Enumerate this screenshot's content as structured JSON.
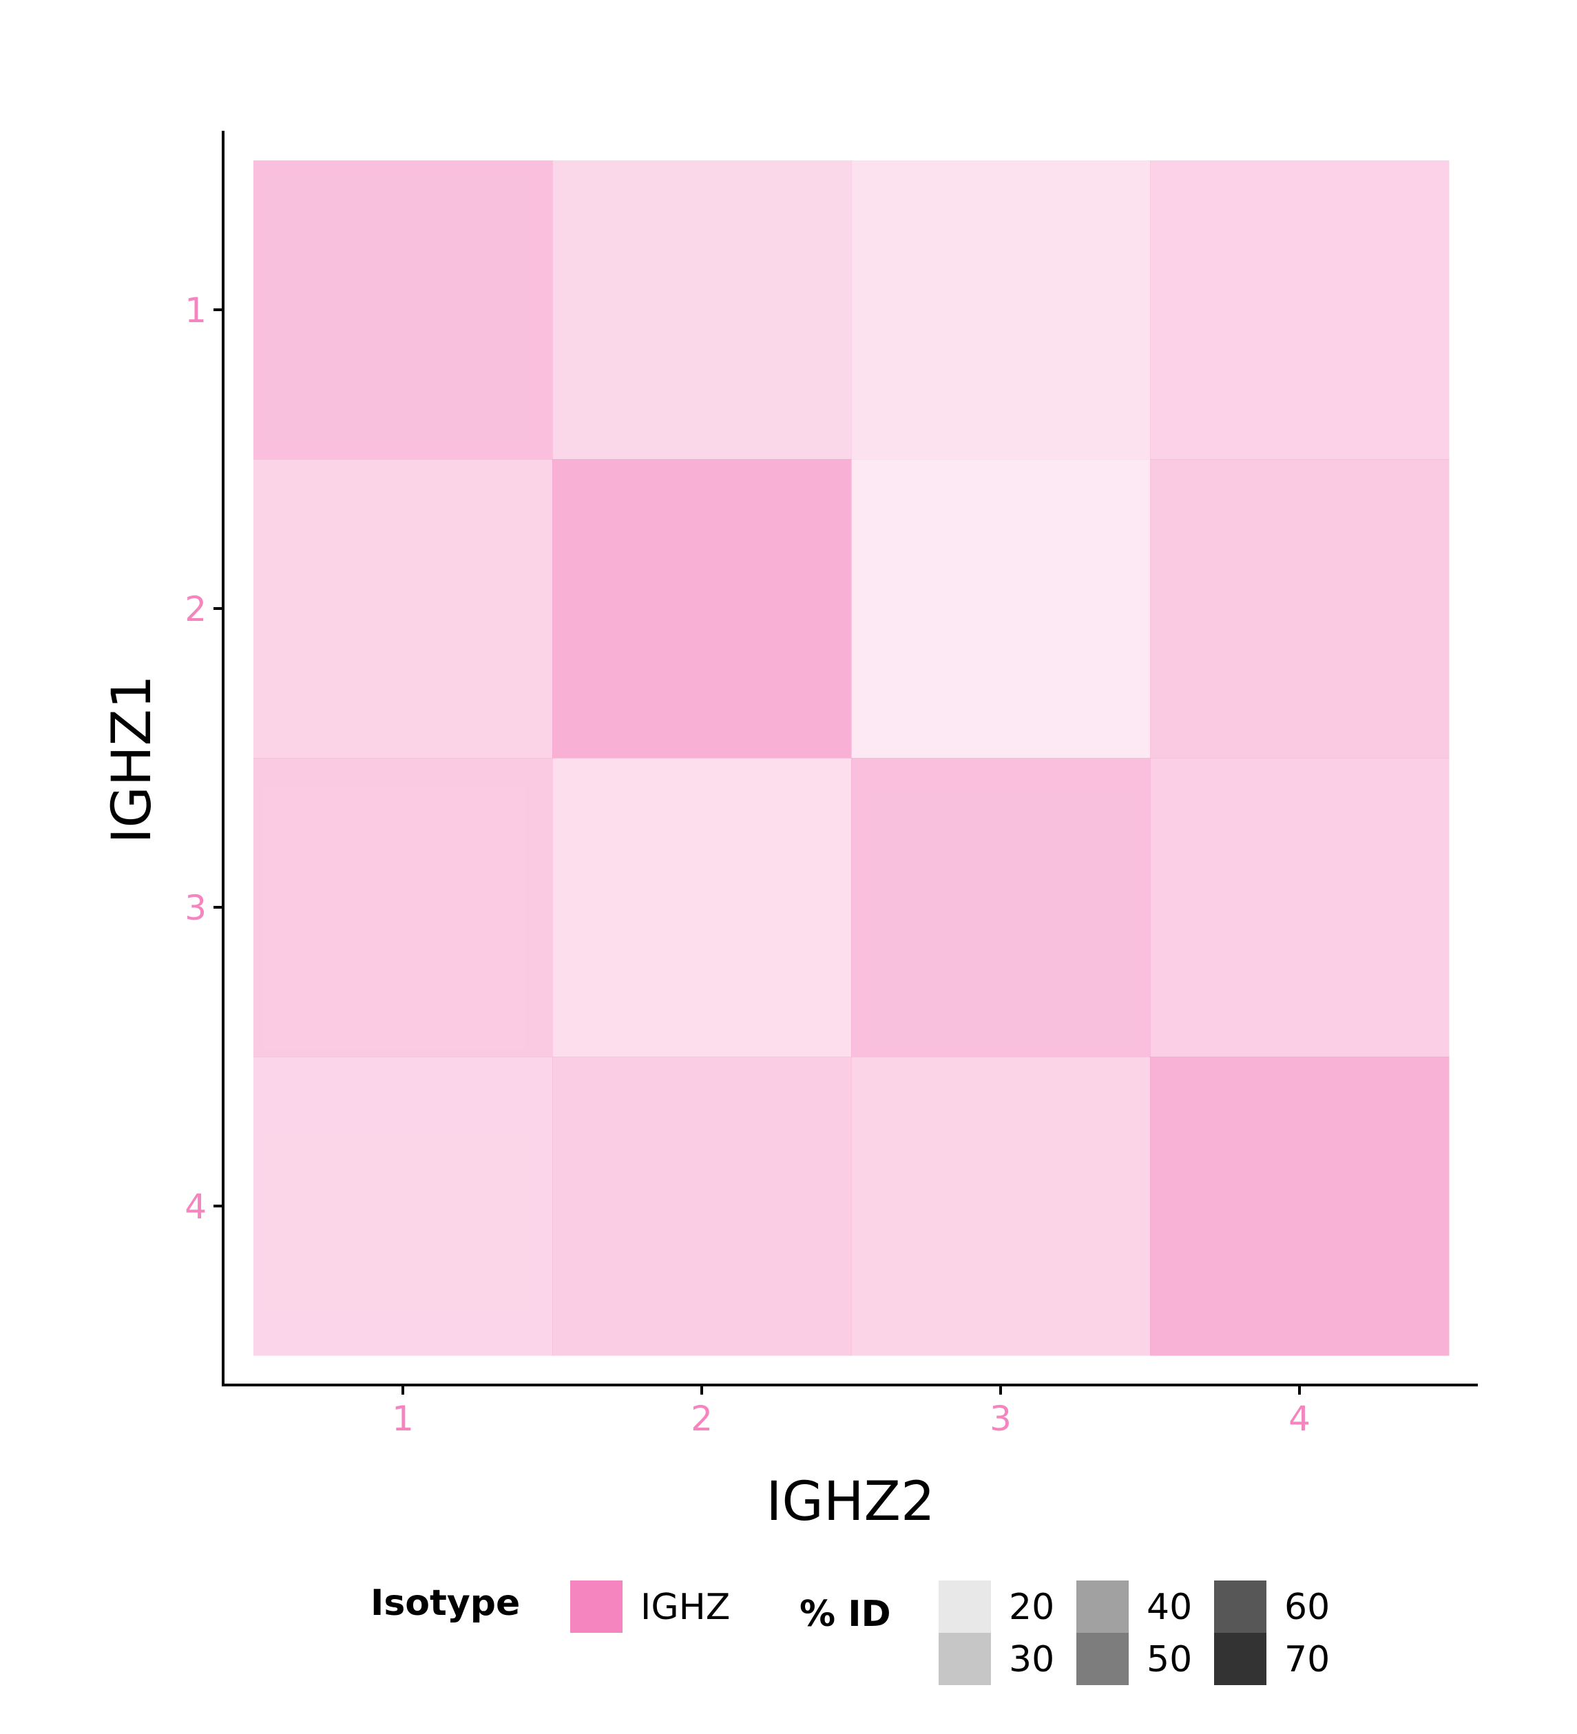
{
  "chart_data": {
    "type": "heatmap",
    "xlabel": "IGHZ2",
    "ylabel": "IGHZ1",
    "x_categories": [
      "1",
      "2",
      "3",
      "4"
    ],
    "y_categories": [
      "1",
      "2",
      "3",
      "4"
    ],
    "fill_color": "#F485BE",
    "grid": false,
    "values": [
      [
        52,
        33,
        24,
        37
      ],
      [
        35,
        65,
        18,
        44
      ],
      [
        43,
        27,
        52,
        39
      ],
      [
        34,
        41,
        35,
        63
      ]
    ],
    "value_description": "% ID (encoded as opacity of the isotype fill color)",
    "legend": {
      "position": "bottom",
      "isotype": {
        "title": "Isotype",
        "entries": [
          {
            "label": "IGHZ",
            "color": "#F485BE"
          }
        ]
      },
      "percent_id": {
        "title": "% ID",
        "entries": [
          {
            "label": "20",
            "color": "#E8E8E8"
          },
          {
            "label": "30",
            "color": "#C6C6C6"
          },
          {
            "label": "40",
            "color": "#A1A1A1"
          },
          {
            "label": "50",
            "color": "#7D7D7D"
          },
          {
            "label": "60",
            "color": "#575757"
          },
          {
            "label": "70",
            "color": "#333333"
          }
        ]
      }
    }
  }
}
